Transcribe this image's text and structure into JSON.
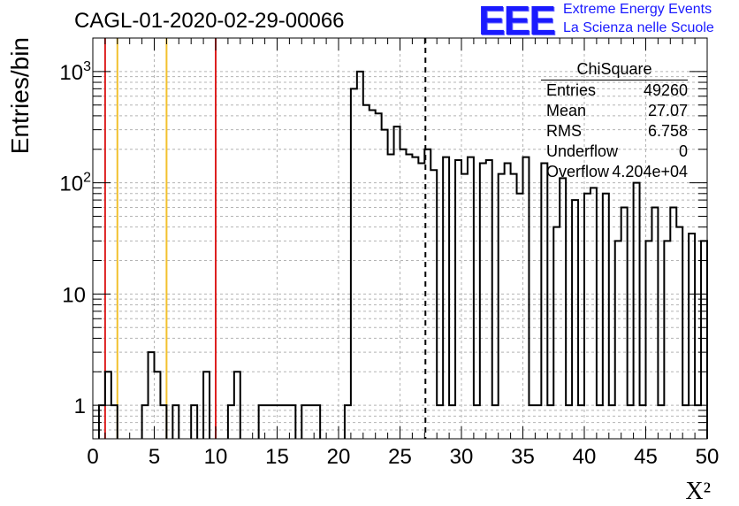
{
  "chart_data": {
    "type": "bar",
    "title": "CAGL-01-2020-02-29-00066",
    "xlabel": "X²",
    "ylabel": "Entries/bin",
    "xlim": [
      0,
      50
    ],
    "ylim": [
      0.5,
      2000
    ],
    "log_y": true,
    "grid": true,
    "x_ticks": [
      "0",
      "5",
      "10",
      "15",
      "20",
      "25",
      "30",
      "35",
      "40",
      "45",
      "50"
    ],
    "y_tick_labels": [
      "1",
      "10",
      "10²",
      "10³"
    ],
    "bin_width": 0.5,
    "bin_low_edges": [
      0.5,
      1.0,
      1.5,
      4.0,
      4.5,
      5.0,
      5.5,
      6.5,
      8.0,
      9.0,
      11.0,
      11.5,
      13.5,
      14.0,
      14.5,
      15.0,
      15.5,
      16.0,
      17.0,
      17.5,
      18.0,
      20.5,
      21.0,
      21.5,
      22.0,
      22.5,
      23.0,
      23.5,
      24.0,
      24.5,
      25.0,
      25.5,
      26.0,
      26.5,
      27.0,
      27.5,
      28.0,
      28.5,
      29.0,
      29.5,
      30.0,
      30.5,
      31.0,
      31.5,
      32.0,
      32.5,
      33.0,
      33.5,
      34.0,
      34.5,
      35.0,
      35.5,
      36.0,
      36.5,
      37.0,
      37.5,
      38.0,
      38.5,
      39.0,
      39.5,
      40.0,
      40.5,
      41.0,
      41.5,
      42.0,
      42.5,
      43.0,
      43.5,
      44.0,
      44.5,
      45.0,
      45.5,
      46.0,
      46.5,
      47.0,
      47.5,
      48.0,
      48.5,
      49.0,
      49.5
    ],
    "values": [
      1,
      2,
      1,
      1,
      3,
      2,
      1,
      1,
      1,
      2,
      1,
      2,
      1,
      1,
      1,
      1,
      1,
      1,
      1,
      1,
      1,
      1,
      700,
      1000,
      500,
      450,
      420,
      300,
      180,
      320,
      200,
      180,
      170,
      150,
      200,
      130,
      1,
      170,
      1,
      160,
      120,
      170,
      1,
      150,
      160,
      1,
      120,
      150,
      120,
      80,
      170,
      1,
      1,
      150,
      1,
      40,
      110,
      1,
      70,
      1,
      80,
      90,
      1,
      80,
      1,
      30,
      60,
      1,
      100,
      1,
      30,
      60,
      1,
      30,
      60,
      40,
      1,
      35,
      1,
      30
    ],
    "vertical_lines": [
      {
        "x": 1,
        "color": "#dd2020",
        "style": "solid"
      },
      {
        "x": 2,
        "color": "#f2c12e",
        "style": "solid"
      },
      {
        "x": 6,
        "color": "#f2c12e",
        "style": "solid"
      },
      {
        "x": 10,
        "color": "#dd2020",
        "style": "solid"
      },
      {
        "x": 27.07,
        "color": "#000000",
        "style": "dashed"
      }
    ],
    "stats_box": {
      "title": "ChiSquare",
      "placement": "top-right",
      "rows": [
        {
          "label": "Entries",
          "value": "49260"
        },
        {
          "label": "Mean",
          "value": "27.07"
        },
        {
          "label": "RMS",
          "value": "6.758"
        },
        {
          "label": "Underflow",
          "value": "0"
        },
        {
          "label": "Overflow",
          "value": "4.204e+04"
        }
      ]
    }
  },
  "logo": {
    "mark": "EEE",
    "line1": "Extreme Energy Events",
    "line2": "La Scienza nelle Scuole",
    "color": "#1a1aff"
  }
}
